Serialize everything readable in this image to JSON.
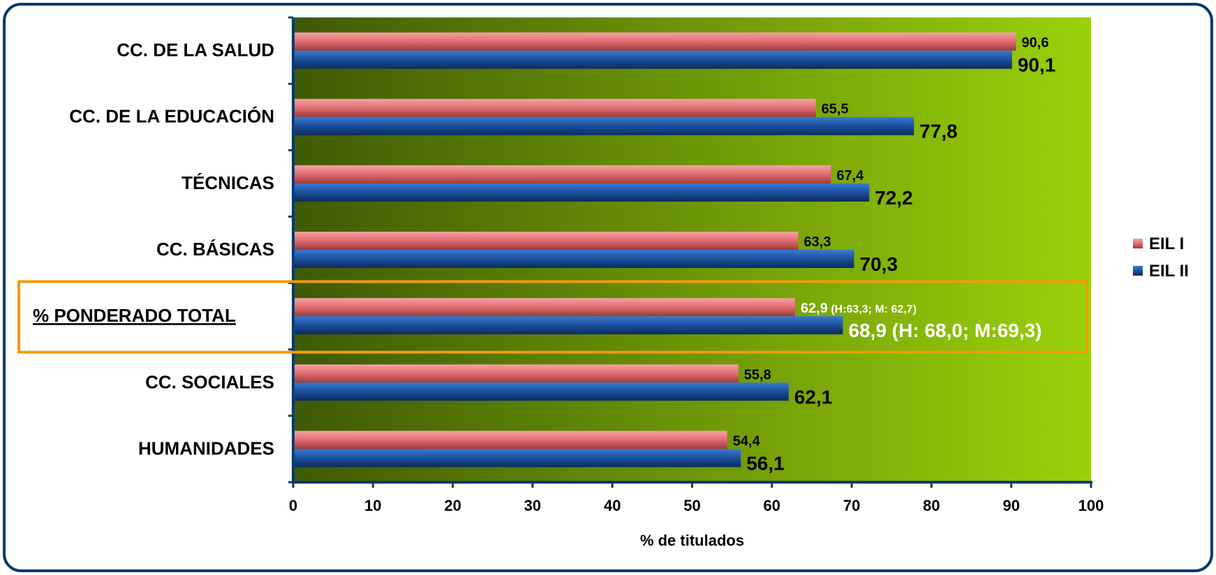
{
  "chart_data": {
    "type": "bar",
    "orientation": "horizontal",
    "categories": [
      "CC. DE LA SALUD",
      "CC. DE LA EDUCACIÓN",
      "TÉCNICAS",
      "CC. BÁSICAS",
      "% PONDERADO TOTAL",
      "CC. SOCIALES",
      "HUMANIDADES"
    ],
    "series": [
      {
        "name": "EIL I",
        "color": "#e06c70",
        "values": [
          90.6,
          65.5,
          67.4,
          63.3,
          62.9,
          55.8,
          54.4
        ],
        "labels": [
          "90,6",
          "65,5",
          "67,4",
          "63,3",
          "62,9",
          "55,8",
          "54,4"
        ],
        "label_suffix": [
          "",
          "",
          "",
          "",
          " (H:63,3; M: 62,7)",
          "",
          ""
        ]
      },
      {
        "name": "EIL II",
        "color": "#1a4f9c",
        "values": [
          90.1,
          77.8,
          72.2,
          70.3,
          68.9,
          62.1,
          56.1
        ],
        "labels": [
          "90,1",
          "77,8",
          "72,2",
          "70,3",
          "68,9 (H: 68,0; M:69,3)",
          "62,1",
          "56,1"
        ],
        "label_suffix": [
          "",
          "",
          "",
          "",
          "",
          "",
          ""
        ]
      }
    ],
    "highlight_category": "% PONDERADO TOTAL",
    "highlight_color": "#f59a0c",
    "xlabel": "% de titulados",
    "ylabel": "",
    "xlim": [
      0,
      100
    ],
    "xticks": [
      0,
      10,
      20,
      30,
      40,
      50,
      60,
      70,
      80,
      90,
      100
    ],
    "legend_position": "right",
    "grid": false,
    "background_gradient": [
      "#3f5a05",
      "#9bd10a"
    ]
  }
}
